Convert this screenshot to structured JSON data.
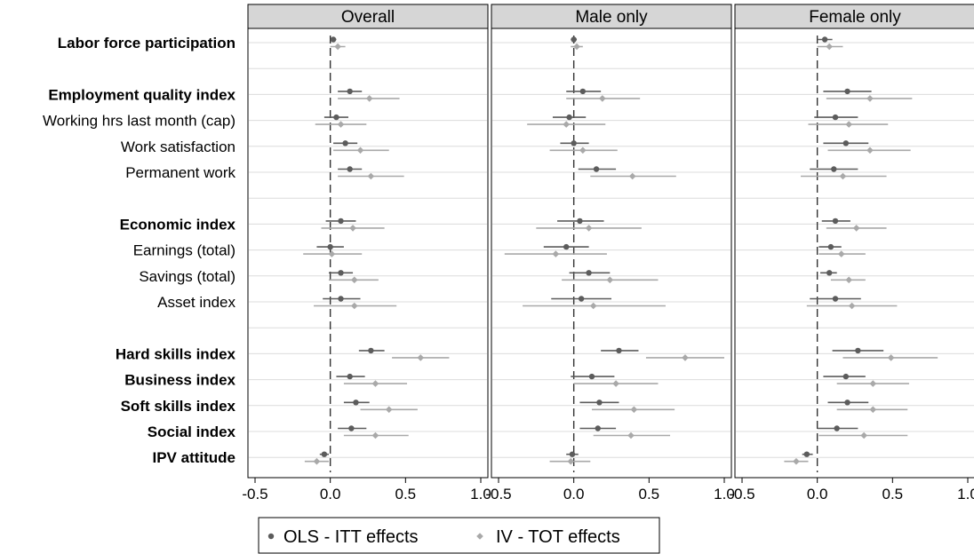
{
  "chart_data": {
    "type": "forest",
    "x_ticks": [
      "-0.5",
      "0.0",
      "0.5",
      "1.0"
    ],
    "xlim": [
      -0.5,
      1.0
    ],
    "reference_line": 0,
    "rows": [
      {
        "label": "Labor force participation",
        "bold": true
      },
      {
        "label": "",
        "bold": false
      },
      {
        "label": "Employment quality index",
        "bold": true
      },
      {
        "label": "Working hrs last month (cap)",
        "bold": false
      },
      {
        "label": "Work satisfaction",
        "bold": false
      },
      {
        "label": "Permanent work",
        "bold": false
      },
      {
        "label": "",
        "bold": false
      },
      {
        "label": "Economic index",
        "bold": true
      },
      {
        "label": "Earnings (total)",
        "bold": false
      },
      {
        "label": "Savings (total)",
        "bold": false
      },
      {
        "label": "Asset index",
        "bold": false
      },
      {
        "label": "",
        "bold": false
      },
      {
        "label": "Hard skills index",
        "bold": true
      },
      {
        "label": "Business index",
        "bold": true
      },
      {
        "label": "Soft skills index",
        "bold": true
      },
      {
        "label": "Social index",
        "bold": true
      },
      {
        "label": "IPV attitude",
        "bold": true
      }
    ],
    "legend": [
      "OLS - ITT effects",
      "IV - TOT effects"
    ],
    "series_colors": {
      "ols": "#5c5c5c",
      "iv": "#a9a9a9"
    },
    "panels": [
      {
        "title": "Overall",
        "ols": [
          {
            "row": 0,
            "est": 0.02,
            "lo": 0.0,
            "hi": 0.04
          },
          {
            "row": 2,
            "est": 0.13,
            "lo": 0.05,
            "hi": 0.21
          },
          {
            "row": 3,
            "est": 0.04,
            "lo": -0.04,
            "hi": 0.12
          },
          {
            "row": 4,
            "est": 0.1,
            "lo": 0.02,
            "hi": 0.18
          },
          {
            "row": 5,
            "est": 0.13,
            "lo": 0.05,
            "hi": 0.21
          },
          {
            "row": 7,
            "est": 0.07,
            "lo": -0.03,
            "hi": 0.17
          },
          {
            "row": 8,
            "est": 0.0,
            "lo": -0.09,
            "hi": 0.09
          },
          {
            "row": 9,
            "est": 0.07,
            "lo": -0.01,
            "hi": 0.15
          },
          {
            "row": 10,
            "est": 0.07,
            "lo": -0.05,
            "hi": 0.2
          },
          {
            "row": 12,
            "est": 0.27,
            "lo": 0.19,
            "hi": 0.36
          },
          {
            "row": 13,
            "est": 0.13,
            "lo": 0.04,
            "hi": 0.23
          },
          {
            "row": 14,
            "est": 0.17,
            "lo": 0.09,
            "hi": 0.26
          },
          {
            "row": 15,
            "est": 0.14,
            "lo": 0.05,
            "hi": 0.24
          },
          {
            "row": 16,
            "est": -0.04,
            "lo": -0.07,
            "hi": -0.01
          }
        ],
        "iv": [
          {
            "row": 0,
            "est": 0.05,
            "lo": 0.0,
            "hi": 0.1
          },
          {
            "row": 2,
            "est": 0.26,
            "lo": 0.05,
            "hi": 0.46
          },
          {
            "row": 3,
            "est": 0.07,
            "lo": -0.1,
            "hi": 0.24
          },
          {
            "row": 4,
            "est": 0.2,
            "lo": 0.02,
            "hi": 0.39
          },
          {
            "row": 5,
            "est": 0.27,
            "lo": 0.05,
            "hi": 0.49
          },
          {
            "row": 7,
            "est": 0.15,
            "lo": -0.06,
            "hi": 0.36
          },
          {
            "row": 8,
            "est": 0.01,
            "lo": -0.18,
            "hi": 0.21
          },
          {
            "row": 9,
            "est": 0.16,
            "lo": -0.01,
            "hi": 0.32
          },
          {
            "row": 10,
            "est": 0.16,
            "lo": -0.11,
            "hi": 0.44
          },
          {
            "row": 12,
            "est": 0.6,
            "lo": 0.41,
            "hi": 0.79
          },
          {
            "row": 13,
            "est": 0.3,
            "lo": 0.09,
            "hi": 0.51
          },
          {
            "row": 14,
            "est": 0.39,
            "lo": 0.2,
            "hi": 0.58
          },
          {
            "row": 15,
            "est": 0.3,
            "lo": 0.09,
            "hi": 0.52
          },
          {
            "row": 16,
            "est": -0.09,
            "lo": -0.17,
            "hi": -0.01
          }
        ]
      },
      {
        "title": "Male only",
        "ols": [
          {
            "row": 0,
            "est": 0.0,
            "lo": -0.02,
            "hi": 0.02
          },
          {
            "row": 2,
            "est": 0.06,
            "lo": -0.05,
            "hi": 0.18
          },
          {
            "row": 3,
            "est": -0.03,
            "lo": -0.14,
            "hi": 0.08
          },
          {
            "row": 4,
            "est": 0.0,
            "lo": -0.09,
            "hi": 0.1
          },
          {
            "row": 5,
            "est": 0.15,
            "lo": 0.03,
            "hi": 0.28
          },
          {
            "row": 7,
            "est": 0.04,
            "lo": -0.11,
            "hi": 0.2
          },
          {
            "row": 8,
            "est": -0.05,
            "lo": -0.2,
            "hi": 0.1
          },
          {
            "row": 9,
            "est": 0.1,
            "lo": -0.03,
            "hi": 0.24
          },
          {
            "row": 10,
            "est": 0.05,
            "lo": -0.15,
            "hi": 0.25
          },
          {
            "row": 12,
            "est": 0.3,
            "lo": 0.18,
            "hi": 0.43
          },
          {
            "row": 13,
            "est": 0.12,
            "lo": -0.02,
            "hi": 0.27
          },
          {
            "row": 14,
            "est": 0.17,
            "lo": 0.04,
            "hi": 0.3
          },
          {
            "row": 15,
            "est": 0.16,
            "lo": 0.04,
            "hi": 0.28
          },
          {
            "row": 16,
            "est": -0.01,
            "lo": -0.05,
            "hi": 0.03
          }
        ],
        "iv": [
          {
            "row": 0,
            "est": 0.02,
            "lo": -0.02,
            "hi": 0.06
          },
          {
            "row": 2,
            "est": 0.19,
            "lo": -0.05,
            "hi": 0.44
          },
          {
            "row": 3,
            "est": -0.05,
            "lo": -0.31,
            "hi": 0.21
          },
          {
            "row": 4,
            "est": 0.06,
            "lo": -0.16,
            "hi": 0.29
          },
          {
            "row": 5,
            "est": 0.39,
            "lo": 0.11,
            "hi": 0.68
          },
          {
            "row": 7,
            "est": 0.1,
            "lo": -0.25,
            "hi": 0.45
          },
          {
            "row": 8,
            "est": -0.12,
            "lo": -0.46,
            "hi": 0.22
          },
          {
            "row": 9,
            "est": 0.24,
            "lo": -0.08,
            "hi": 0.56
          },
          {
            "row": 10,
            "est": 0.13,
            "lo": -0.34,
            "hi": 0.61
          },
          {
            "row": 12,
            "est": 0.74,
            "lo": 0.48,
            "hi": 1.0
          },
          {
            "row": 13,
            "est": 0.28,
            "lo": 0.0,
            "hi": 0.56
          },
          {
            "row": 14,
            "est": 0.4,
            "lo": 0.12,
            "hi": 0.67
          },
          {
            "row": 15,
            "est": 0.38,
            "lo": 0.13,
            "hi": 0.64
          },
          {
            "row": 16,
            "est": -0.02,
            "lo": -0.16,
            "hi": 0.11
          }
        ]
      },
      {
        "title": "Female only",
        "ols": [
          {
            "row": 0,
            "est": 0.05,
            "lo": 0.0,
            "hi": 0.1
          },
          {
            "row": 2,
            "est": 0.2,
            "lo": 0.04,
            "hi": 0.36
          },
          {
            "row": 3,
            "est": 0.12,
            "lo": -0.02,
            "hi": 0.27
          },
          {
            "row": 4,
            "est": 0.19,
            "lo": 0.04,
            "hi": 0.34
          },
          {
            "row": 5,
            "est": 0.11,
            "lo": -0.05,
            "hi": 0.27
          },
          {
            "row": 7,
            "est": 0.12,
            "lo": 0.03,
            "hi": 0.22
          },
          {
            "row": 8,
            "est": 0.09,
            "lo": 0.01,
            "hi": 0.16
          },
          {
            "row": 9,
            "est": 0.08,
            "lo": 0.02,
            "hi": 0.13
          },
          {
            "row": 10,
            "est": 0.12,
            "lo": -0.05,
            "hi": 0.29
          },
          {
            "row": 12,
            "est": 0.27,
            "lo": 0.1,
            "hi": 0.44
          },
          {
            "row": 13,
            "est": 0.19,
            "lo": 0.04,
            "hi": 0.32
          },
          {
            "row": 14,
            "est": 0.2,
            "lo": 0.07,
            "hi": 0.34
          },
          {
            "row": 15,
            "est": 0.13,
            "lo": 0.0,
            "hi": 0.27
          },
          {
            "row": 16,
            "est": -0.07,
            "lo": -0.1,
            "hi": -0.03
          }
        ],
        "iv": [
          {
            "row": 0,
            "est": 0.08,
            "lo": 0.0,
            "hi": 0.17
          },
          {
            "row": 2,
            "est": 0.35,
            "lo": 0.06,
            "hi": 0.63
          },
          {
            "row": 3,
            "est": 0.21,
            "lo": -0.06,
            "hi": 0.47
          },
          {
            "row": 4,
            "est": 0.35,
            "lo": 0.07,
            "hi": 0.62
          },
          {
            "row": 5,
            "est": 0.17,
            "lo": -0.11,
            "hi": 0.46
          },
          {
            "row": 7,
            "est": 0.26,
            "lo": 0.06,
            "hi": 0.46
          },
          {
            "row": 8,
            "est": 0.16,
            "lo": 0.01,
            "hi": 0.32
          },
          {
            "row": 9,
            "est": 0.21,
            "lo": 0.09,
            "hi": 0.32
          },
          {
            "row": 10,
            "est": 0.23,
            "lo": -0.07,
            "hi": 0.53
          },
          {
            "row": 12,
            "est": 0.49,
            "lo": 0.17,
            "hi": 0.8
          },
          {
            "row": 13,
            "est": 0.37,
            "lo": 0.13,
            "hi": 0.61
          },
          {
            "row": 14,
            "est": 0.37,
            "lo": 0.13,
            "hi": 0.6
          },
          {
            "row": 15,
            "est": 0.31,
            "lo": 0.01,
            "hi": 0.6
          },
          {
            "row": 16,
            "est": -0.14,
            "lo": -0.22,
            "hi": -0.06
          }
        ]
      }
    ]
  }
}
